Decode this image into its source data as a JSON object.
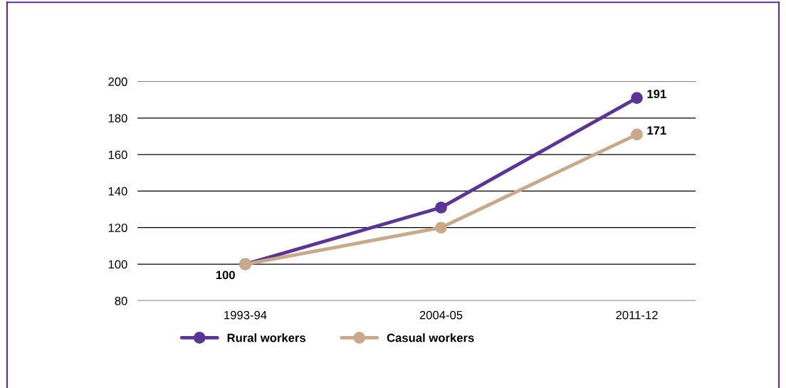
{
  "chart_data": {
    "type": "line",
    "categories": [
      "1993-94",
      "2004-05",
      "2011-12"
    ],
    "series": [
      {
        "name": "Rural workers",
        "color": "#5b3596",
        "values": [
          100,
          131,
          191
        ],
        "value_labels": [
          "100",
          null,
          "191"
        ]
      },
      {
        "name": "Casual workers",
        "color": "#c9a98a",
        "values": [
          100,
          120,
          171
        ],
        "value_labels": [
          null,
          null,
          "171"
        ]
      }
    ],
    "ylim": [
      80,
      200
    ],
    "yticks": [
      80,
      100,
      120,
      140,
      160,
      180,
      200
    ],
    "grid": "y",
    "legend": "bottom",
    "marker": "circle",
    "line_style": "solid"
  }
}
